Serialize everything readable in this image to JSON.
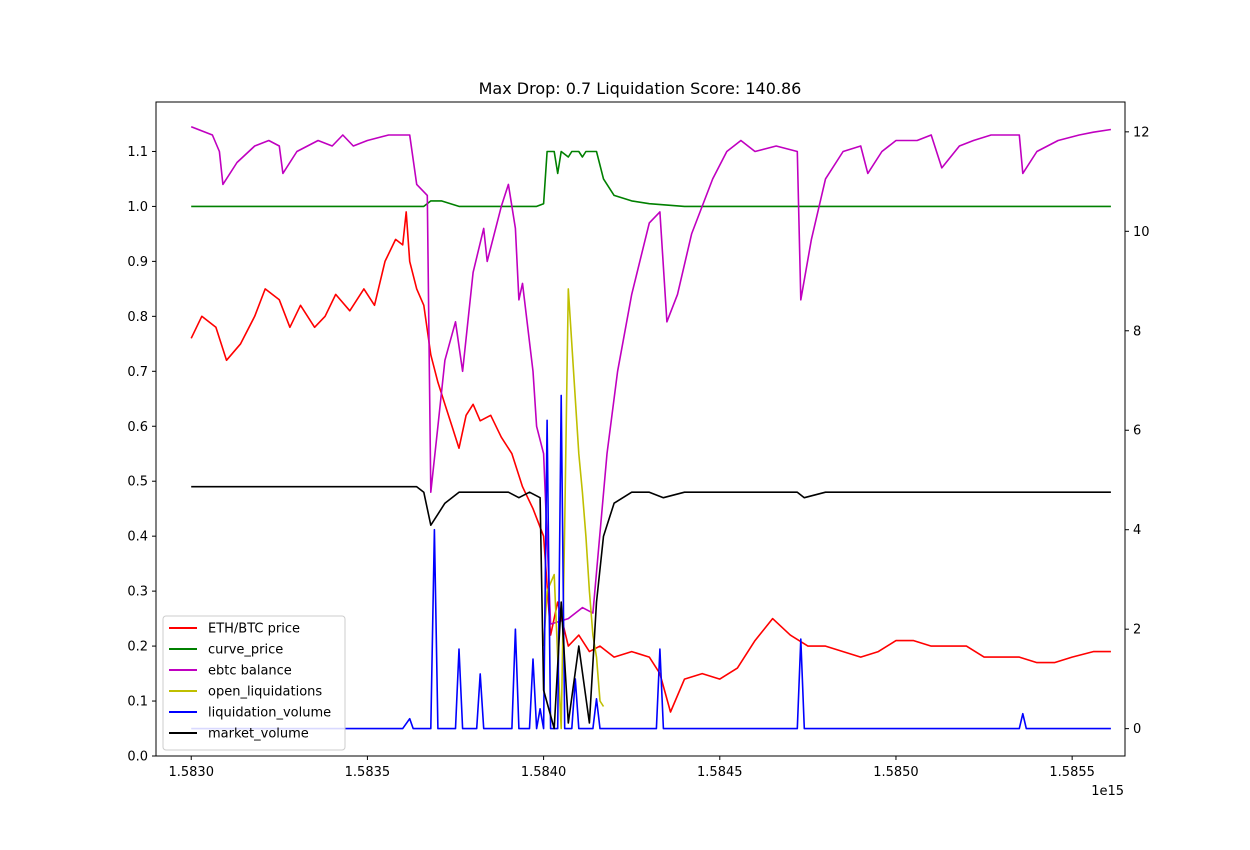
{
  "chart_data": {
    "type": "line",
    "title": "Max Drop: 0.7 Liquidation Score: 140.86",
    "x_offset_label": "1e15",
    "xlim": [
      1.5829,
      1.58565
    ],
    "ylim_left": [
      0.0,
      1.19
    ],
    "ylim_right": [
      -0.55,
      12.6
    ],
    "x_ticks": [
      1.583,
      1.5835,
      1.584,
      1.5845,
      1.585,
      1.5855
    ],
    "x_tick_labels": [
      "1.5830",
      "1.5835",
      "1.5840",
      "1.5845",
      "1.5850",
      "1.5855"
    ],
    "y_left_ticks": [
      0.0,
      0.1,
      0.2,
      0.3,
      0.4,
      0.5,
      0.6,
      0.7,
      0.8,
      0.9,
      1.0,
      1.1
    ],
    "y_left_tick_labels": [
      "0.0",
      "0.1",
      "0.2",
      "0.3",
      "0.4",
      "0.5",
      "0.6",
      "0.7",
      "0.8",
      "0.9",
      "1.0",
      "1.1"
    ],
    "y_right_ticks": [
      0,
      2,
      4,
      6,
      8,
      10,
      12
    ],
    "y_right_tick_labels": [
      "0",
      "2",
      "4",
      "6",
      "8",
      "10",
      "12"
    ],
    "grid": false,
    "legend_position": "lower-left",
    "series": [
      {
        "name": "ETH/BTC price",
        "color": "#ff0000",
        "axis": "left",
        "points": [
          [
            1.583,
            0.76
          ],
          [
            1.58303,
            0.8
          ],
          [
            1.58307,
            0.78
          ],
          [
            1.5831,
            0.72
          ],
          [
            1.58314,
            0.75
          ],
          [
            1.58318,
            0.8
          ],
          [
            1.58321,
            0.85
          ],
          [
            1.58325,
            0.83
          ],
          [
            1.58328,
            0.78
          ],
          [
            1.58331,
            0.82
          ],
          [
            1.58335,
            0.78
          ],
          [
            1.58338,
            0.8
          ],
          [
            1.58341,
            0.84
          ],
          [
            1.58345,
            0.81
          ],
          [
            1.58349,
            0.85
          ],
          [
            1.58352,
            0.82
          ],
          [
            1.58355,
            0.9
          ],
          [
            1.58358,
            0.94
          ],
          [
            1.5836,
            0.93
          ],
          [
            1.58361,
            0.99
          ],
          [
            1.58362,
            0.9
          ],
          [
            1.58364,
            0.85
          ],
          [
            1.58366,
            0.82
          ],
          [
            1.58368,
            0.73
          ],
          [
            1.5837,
            0.68
          ],
          [
            1.58372,
            0.64
          ],
          [
            1.58374,
            0.6
          ],
          [
            1.58376,
            0.56
          ],
          [
            1.58378,
            0.62
          ],
          [
            1.5838,
            0.64
          ],
          [
            1.58382,
            0.61
          ],
          [
            1.58385,
            0.62
          ],
          [
            1.58388,
            0.58
          ],
          [
            1.58391,
            0.55
          ],
          [
            1.58394,
            0.49
          ],
          [
            1.58397,
            0.45
          ],
          [
            1.584,
            0.4
          ],
          [
            1.58402,
            0.22
          ],
          [
            1.58404,
            0.28
          ],
          [
            1.58407,
            0.2
          ],
          [
            1.5841,
            0.22
          ],
          [
            1.58413,
            0.19
          ],
          [
            1.58416,
            0.2
          ],
          [
            1.5842,
            0.18
          ],
          [
            1.58425,
            0.19
          ],
          [
            1.5843,
            0.18
          ],
          [
            1.58433,
            0.15
          ],
          [
            1.58436,
            0.08
          ],
          [
            1.5844,
            0.14
          ],
          [
            1.58445,
            0.15
          ],
          [
            1.5845,
            0.14
          ],
          [
            1.58455,
            0.16
          ],
          [
            1.5846,
            0.21
          ],
          [
            1.58465,
            0.25
          ],
          [
            1.5847,
            0.22
          ],
          [
            1.58475,
            0.2
          ],
          [
            1.5848,
            0.2
          ],
          [
            1.58485,
            0.19
          ],
          [
            1.5849,
            0.18
          ],
          [
            1.58495,
            0.19
          ],
          [
            1.585,
            0.21
          ],
          [
            1.58505,
            0.21
          ],
          [
            1.5851,
            0.2
          ],
          [
            1.58515,
            0.2
          ],
          [
            1.5852,
            0.2
          ],
          [
            1.58525,
            0.18
          ],
          [
            1.5853,
            0.18
          ],
          [
            1.58535,
            0.18
          ],
          [
            1.5854,
            0.17
          ],
          [
            1.58545,
            0.17
          ],
          [
            1.5855,
            0.18
          ],
          [
            1.58556,
            0.19
          ],
          [
            1.58561,
            0.19
          ]
        ]
      },
      {
        "name": "curve_price",
        "color": "#008000",
        "axis": "left",
        "points": [
          [
            1.583,
            1.0
          ],
          [
            1.58366,
            1.0
          ],
          [
            1.58368,
            1.01
          ],
          [
            1.58371,
            1.01
          ],
          [
            1.58376,
            1.0
          ],
          [
            1.58398,
            1.0
          ],
          [
            1.584,
            1.005
          ],
          [
            1.58401,
            1.1
          ],
          [
            1.58403,
            1.1
          ],
          [
            1.58404,
            1.06
          ],
          [
            1.58405,
            1.1
          ],
          [
            1.58407,
            1.09
          ],
          [
            1.58408,
            1.1
          ],
          [
            1.5841,
            1.1
          ],
          [
            1.58411,
            1.09
          ],
          [
            1.58412,
            1.1
          ],
          [
            1.58415,
            1.1
          ],
          [
            1.58417,
            1.05
          ],
          [
            1.5842,
            1.02
          ],
          [
            1.58425,
            1.01
          ],
          [
            1.5843,
            1.005
          ],
          [
            1.5844,
            1.0
          ],
          [
            1.58561,
            1.0
          ]
        ]
      },
      {
        "name": "ebtc balance",
        "color": "#c000c0",
        "axis": "left",
        "points": [
          [
            1.583,
            1.145
          ],
          [
            1.58306,
            1.13
          ],
          [
            1.58308,
            1.1
          ],
          [
            1.58309,
            1.04
          ],
          [
            1.58313,
            1.08
          ],
          [
            1.58318,
            1.11
          ],
          [
            1.58322,
            1.12
          ],
          [
            1.58325,
            1.11
          ],
          [
            1.58326,
            1.06
          ],
          [
            1.5833,
            1.1
          ],
          [
            1.58336,
            1.12
          ],
          [
            1.5834,
            1.11
          ],
          [
            1.58343,
            1.13
          ],
          [
            1.58346,
            1.11
          ],
          [
            1.5835,
            1.12
          ],
          [
            1.58356,
            1.13
          ],
          [
            1.58362,
            1.13
          ],
          [
            1.58364,
            1.04
          ],
          [
            1.58367,
            1.02
          ],
          [
            1.58368,
            0.48
          ],
          [
            1.5837,
            0.6
          ],
          [
            1.58372,
            0.72
          ],
          [
            1.58375,
            0.79
          ],
          [
            1.58377,
            0.7
          ],
          [
            1.5838,
            0.88
          ],
          [
            1.58383,
            0.96
          ],
          [
            1.58384,
            0.9
          ],
          [
            1.58388,
            1.0
          ],
          [
            1.5839,
            1.04
          ],
          [
            1.58392,
            0.96
          ],
          [
            1.58393,
            0.83
          ],
          [
            1.58394,
            0.86
          ],
          [
            1.58397,
            0.7
          ],
          [
            1.58398,
            0.6
          ],
          [
            1.584,
            0.55
          ],
          [
            1.58402,
            0.24
          ],
          [
            1.58407,
            0.25
          ],
          [
            1.58411,
            0.27
          ],
          [
            1.58414,
            0.26
          ],
          [
            1.58418,
            0.55
          ],
          [
            1.58421,
            0.7
          ],
          [
            1.58425,
            0.84
          ],
          [
            1.5843,
            0.97
          ],
          [
            1.58433,
            0.99
          ],
          [
            1.58435,
            0.79
          ],
          [
            1.58438,
            0.84
          ],
          [
            1.58442,
            0.95
          ],
          [
            1.58448,
            1.05
          ],
          [
            1.58452,
            1.1
          ],
          [
            1.58456,
            1.12
          ],
          [
            1.5846,
            1.1
          ],
          [
            1.58466,
            1.11
          ],
          [
            1.58472,
            1.1
          ],
          [
            1.58473,
            0.83
          ],
          [
            1.58476,
            0.94
          ],
          [
            1.5848,
            1.05
          ],
          [
            1.58485,
            1.1
          ],
          [
            1.5849,
            1.11
          ],
          [
            1.58492,
            1.06
          ],
          [
            1.58496,
            1.1
          ],
          [
            1.585,
            1.12
          ],
          [
            1.58506,
            1.12
          ],
          [
            1.5851,
            1.13
          ],
          [
            1.58513,
            1.07
          ],
          [
            1.58518,
            1.11
          ],
          [
            1.58522,
            1.12
          ],
          [
            1.58527,
            1.13
          ],
          [
            1.58532,
            1.13
          ],
          [
            1.58535,
            1.13
          ],
          [
            1.58536,
            1.06
          ],
          [
            1.5854,
            1.1
          ],
          [
            1.58546,
            1.12
          ],
          [
            1.58552,
            1.13
          ],
          [
            1.58556,
            1.135
          ],
          [
            1.58561,
            1.14
          ]
        ]
      },
      {
        "name": "open_liquidations",
        "color": "#bfbf00",
        "axis": "left",
        "points": [
          [
            1.584,
            0.2
          ],
          [
            1.58401,
            0.3
          ],
          [
            1.58403,
            0.33
          ],
          [
            1.58404,
            0.18
          ],
          [
            1.58405,
            0.05
          ],
          [
            1.58406,
            0.42
          ],
          [
            1.58407,
            0.85
          ],
          [
            1.58408,
            0.75
          ],
          [
            1.58409,
            0.65
          ],
          [
            1.5841,
            0.55
          ],
          [
            1.58411,
            0.48
          ],
          [
            1.58412,
            0.4
          ],
          [
            1.58413,
            0.3
          ],
          [
            1.58414,
            0.22
          ],
          [
            1.58415,
            0.18
          ],
          [
            1.58416,
            0.1
          ],
          [
            1.58417,
            0.09
          ]
        ]
      },
      {
        "name": "liquidation_volume",
        "color": "#0000ff",
        "axis": "right",
        "points": [
          [
            1.583,
            0.0
          ],
          [
            1.5836,
            0.0
          ],
          [
            1.58362,
            0.2
          ],
          [
            1.58363,
            0.0
          ],
          [
            1.58368,
            0.0
          ],
          [
            1.58369,
            4.0
          ],
          [
            1.5837,
            0.0
          ],
          [
            1.58375,
            0.0
          ],
          [
            1.58376,
            1.6
          ],
          [
            1.58377,
            0.0
          ],
          [
            1.58381,
            0.0
          ],
          [
            1.58382,
            1.1
          ],
          [
            1.58383,
            0.0
          ],
          [
            1.58391,
            0.0
          ],
          [
            1.58392,
            2.0
          ],
          [
            1.58393,
            0.0
          ],
          [
            1.58396,
            0.0
          ],
          [
            1.58397,
            1.4
          ],
          [
            1.58398,
            0.0
          ],
          [
            1.58399,
            0.4
          ],
          [
            1.584,
            0.0
          ],
          [
            1.58401,
            6.2
          ],
          [
            1.58402,
            0.0
          ],
          [
            1.58404,
            0.0
          ],
          [
            1.58405,
            6.7
          ],
          [
            1.58406,
            0.0
          ],
          [
            1.58408,
            0.0
          ],
          [
            1.58409,
            1.0
          ],
          [
            1.5841,
            0.0
          ],
          [
            1.58414,
            0.0
          ],
          [
            1.58415,
            0.6
          ],
          [
            1.58416,
            0.0
          ],
          [
            1.58432,
            0.0
          ],
          [
            1.58433,
            1.6
          ],
          [
            1.58434,
            0.0
          ],
          [
            1.58472,
            0.0
          ],
          [
            1.58473,
            1.8
          ],
          [
            1.58474,
            0.0
          ],
          [
            1.58535,
            0.0
          ],
          [
            1.58536,
            0.3
          ],
          [
            1.58537,
            0.0
          ],
          [
            1.58561,
            0.0
          ]
        ]
      },
      {
        "name": "market_volume",
        "color": "#000000",
        "axis": "left",
        "points": [
          [
            1.583,
            0.49
          ],
          [
            1.5831,
            0.49
          ],
          [
            1.5832,
            0.49
          ],
          [
            1.5834,
            0.49
          ],
          [
            1.58364,
            0.49
          ],
          [
            1.58366,
            0.48
          ],
          [
            1.58368,
            0.42
          ],
          [
            1.5837,
            0.44
          ],
          [
            1.58372,
            0.46
          ],
          [
            1.58376,
            0.48
          ],
          [
            1.58385,
            0.48
          ],
          [
            1.5839,
            0.48
          ],
          [
            1.58393,
            0.47
          ],
          [
            1.58396,
            0.48
          ],
          [
            1.58399,
            0.47
          ],
          [
            1.584,
            0.12
          ],
          [
            1.58403,
            0.05
          ],
          [
            1.58405,
            0.28
          ],
          [
            1.58407,
            0.06
          ],
          [
            1.5841,
            0.2
          ],
          [
            1.58413,
            0.06
          ],
          [
            1.58415,
            0.28
          ],
          [
            1.58417,
            0.4
          ],
          [
            1.5842,
            0.46
          ],
          [
            1.58425,
            0.48
          ],
          [
            1.5843,
            0.48
          ],
          [
            1.58434,
            0.47
          ],
          [
            1.5844,
            0.48
          ],
          [
            1.58472,
            0.48
          ],
          [
            1.58474,
            0.47
          ],
          [
            1.5848,
            0.48
          ],
          [
            1.58561,
            0.48
          ]
        ]
      }
    ]
  }
}
